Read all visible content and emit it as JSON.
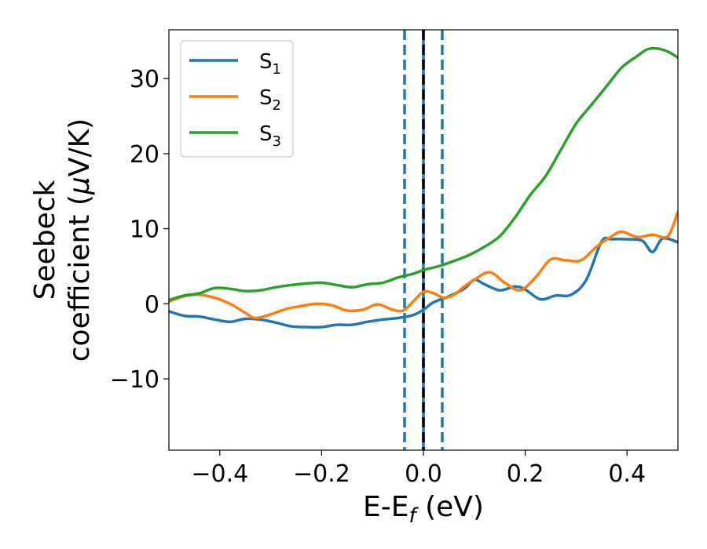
{
  "chart_data": {
    "type": "line",
    "xlabel": {
      "base": "E-E",
      "sub": "f",
      "tail": " (eV)"
    },
    "ylabel": {
      "line1": "Seebeck",
      "line2": "coefficient  (",
      "mu": "μ",
      "tail": "V/K)"
    },
    "xlim": [
      -0.5,
      0.5
    ],
    "ylim": [
      -19.5,
      36.5
    ],
    "x_ticks": [
      -0.4,
      -0.2,
      0.0,
      0.2,
      0.4
    ],
    "x_tick_labels": [
      "−0.4",
      "−0.2",
      "0.0",
      "0.2",
      "0.4"
    ],
    "y_ticks": [
      -10,
      0,
      10,
      20,
      30
    ],
    "y_tick_labels": [
      "−10",
      "0",
      "10",
      "20",
      "30"
    ],
    "grid": false,
    "legend_position": "top-left",
    "vlines": [
      {
        "x": -0.037,
        "style": "dashed",
        "color": "#1f77b4"
      },
      {
        "x": 0.0,
        "style": "solid",
        "color": "#1f77b4"
      },
      {
        "x": 0.0,
        "style": "dashed",
        "color": "#000000"
      },
      {
        "x": 0.037,
        "style": "dashed",
        "color": "#1f77b4"
      }
    ],
    "series": [
      {
        "name": "S",
        "sub": "1",
        "color": "#1f77b4",
        "x": [
          -0.5,
          -0.47,
          -0.44,
          -0.41,
          -0.38,
          -0.35,
          -0.32,
          -0.29,
          -0.26,
          -0.23,
          -0.2,
          -0.17,
          -0.14,
          -0.11,
          -0.08,
          -0.05,
          -0.02,
          0.0,
          0.02,
          0.05,
          0.08,
          0.1,
          0.12,
          0.15,
          0.18,
          0.2,
          0.23,
          0.26,
          0.29,
          0.32,
          0.35,
          0.37,
          0.4,
          0.43,
          0.45,
          0.47,
          0.5
        ],
        "values": [
          -1.0,
          -1.6,
          -1.7,
          -2.1,
          -2.4,
          -2.0,
          -2.1,
          -2.5,
          -3.0,
          -3.1,
          -3.1,
          -2.8,
          -2.8,
          -2.4,
          -2.1,
          -1.9,
          -1.5,
          -0.8,
          0.2,
          1.0,
          2.0,
          3.2,
          2.6,
          1.8,
          2.3,
          1.9,
          0.6,
          1.1,
          1.2,
          3.2,
          8.3,
          8.6,
          8.6,
          8.4,
          6.9,
          8.7,
          8.2
        ]
      },
      {
        "name": "S",
        "sub": "2",
        "color": "#ff7f0e",
        "x": [
          -0.5,
          -0.47,
          -0.44,
          -0.41,
          -0.38,
          -0.35,
          -0.33,
          -0.3,
          -0.27,
          -0.24,
          -0.21,
          -0.18,
          -0.15,
          -0.12,
          -0.09,
          -0.06,
          -0.04,
          -0.02,
          0.0,
          0.02,
          0.04,
          0.06,
          0.08,
          0.1,
          0.13,
          0.16,
          0.19,
          0.22,
          0.25,
          0.28,
          0.31,
          0.34,
          0.37,
          0.39,
          0.42,
          0.45,
          0.48,
          0.5
        ],
        "values": [
          0.3,
          1.0,
          1.2,
          0.8,
          0.0,
          -1.2,
          -1.9,
          -1.4,
          -0.7,
          -0.3,
          0.0,
          -0.2,
          -0.9,
          -0.8,
          -0.1,
          -0.8,
          -0.9,
          0.3,
          1.6,
          1.4,
          0.8,
          1.2,
          2.3,
          3.2,
          4.2,
          2.8,
          1.8,
          3.5,
          5.9,
          5.8,
          5.8,
          7.6,
          9.0,
          9.6,
          8.9,
          9.2,
          9.0,
          12.3
        ]
      },
      {
        "name": "S",
        "sub": "3",
        "color": "#2ca02c",
        "x": [
          -0.5,
          -0.47,
          -0.44,
          -0.41,
          -0.38,
          -0.35,
          -0.32,
          -0.29,
          -0.26,
          -0.23,
          -0.2,
          -0.17,
          -0.14,
          -0.11,
          -0.08,
          -0.05,
          -0.02,
          0.0,
          0.03,
          0.06,
          0.09,
          0.12,
          0.15,
          0.18,
          0.21,
          0.24,
          0.27,
          0.3,
          0.33,
          0.36,
          0.39,
          0.42,
          0.44,
          0.46,
          0.48,
          0.5
        ],
        "values": [
          0.5,
          1.1,
          1.4,
          2.1,
          2.0,
          1.7,
          1.8,
          2.2,
          2.5,
          2.7,
          2.8,
          2.5,
          2.2,
          2.6,
          2.8,
          3.5,
          4.0,
          4.5,
          5.0,
          5.7,
          6.5,
          7.6,
          9.0,
          11.5,
          14.5,
          17.0,
          20.5,
          24.0,
          26.5,
          29.0,
          31.5,
          33.0,
          33.9,
          34.0,
          33.6,
          32.8
        ]
      }
    ]
  }
}
